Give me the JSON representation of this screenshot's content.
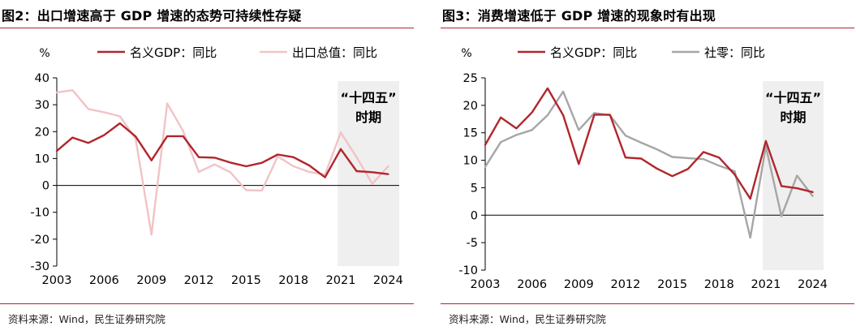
{
  "panels": [
    {
      "title": "图2：出口增速高于 GDP 增速的态势可持续性存疑",
      "source": "资料来源：Wind，民生证券研究院",
      "chart_data": {
        "type": "line",
        "unit": "%",
        "ylim": [
          -30,
          40
        ],
        "yticks": [
          40,
          30,
          20,
          10,
          0,
          -10,
          -20,
          -30
        ],
        "xlim": [
          2003,
          2024.7
        ],
        "xticks": [
          2003,
          2006,
          2009,
          2012,
          2015,
          2018,
          2021,
          2024
        ],
        "grid": false,
        "legend": "top",
        "annotation": {
          "lines": [
            "“十四五”",
            "时期"
          ],
          "shaded_from": 2020.8,
          "shaded_to": 2024.7
        },
        "series": [
          {
            "name": "名义GDP：同比",
            "color": "#b1262c",
            "x": [
              2003,
              2004,
              2005,
              2006,
              2007,
              2008,
              2009,
              2010,
              2011,
              2012,
              2013,
              2014,
              2015,
              2016,
              2017,
              2018,
              2019,
              2020,
              2021,
              2022,
              2023,
              2024
            ],
            "values": [
              12.8,
              17.8,
              15.8,
              18.7,
              23.1,
              18.2,
              9.3,
              18.3,
              18.3,
              10.5,
              10.3,
              8.5,
              7.1,
              8.4,
              11.5,
              10.5,
              7.4,
              3.0,
              13.5,
              5.3,
              4.9,
              4.2
            ]
          },
          {
            "name": "出口总值：同比",
            "color": "#f1c3c6",
            "x": [
              2003,
              2004,
              2005,
              2006,
              2007,
              2008,
              2009,
              2010,
              2011,
              2012,
              2013,
              2014,
              2015,
              2016,
              2017,
              2018,
              2019,
              2020,
              2021,
              2022,
              2023,
              2024
            ],
            "values": [
              34.6,
              35.4,
              28.4,
              27.2,
              25.7,
              17.3,
              -18.3,
              30.5,
              20.3,
              5.0,
              7.8,
              4.9,
              -1.8,
              -1.9,
              10.8,
              7.1,
              5.0,
              4.0,
              19.7,
              10.5,
              0.6,
              7.1
            ]
          }
        ]
      }
    },
    {
      "title": "图3：消费增速低于 GDP 增速的现象时有出现",
      "source": "资料来源：Wind，民生证券研究院",
      "chart_data": {
        "type": "line",
        "unit": "%",
        "ylim": [
          -10,
          25
        ],
        "yticks": [
          25,
          20,
          15,
          10,
          5,
          0,
          -5,
          -10
        ],
        "xlim": [
          2003,
          2024.7
        ],
        "xticks": [
          2003,
          2006,
          2009,
          2012,
          2015,
          2018,
          2021,
          2024
        ],
        "grid": false,
        "legend": "top",
        "annotation": {
          "lines": [
            "“十四五”",
            "时期"
          ],
          "shaded_from": 2020.8,
          "shaded_to": 2024.7
        },
        "series": [
          {
            "name": "名义GDP：同比",
            "color": "#b1262c",
            "x": [
              2003,
              2004,
              2005,
              2006,
              2007,
              2008,
              2009,
              2010,
              2011,
              2012,
              2013,
              2014,
              2015,
              2016,
              2017,
              2018,
              2019,
              2020,
              2021,
              2022,
              2023,
              2024
            ],
            "values": [
              12.8,
              17.8,
              15.8,
              18.7,
              23.1,
              18.2,
              9.3,
              18.3,
              18.3,
              10.5,
              10.3,
              8.5,
              7.1,
              8.4,
              11.5,
              10.5,
              7.4,
              3.0,
              13.5,
              5.3,
              4.9,
              4.2
            ]
          },
          {
            "name": "社零：同比",
            "color": "#a6a6a6",
            "x": [
              2003,
              2004,
              2005,
              2006,
              2007,
              2008,
              2009,
              2010,
              2011,
              2012,
              2013,
              2014,
              2015,
              2016,
              2017,
              2018,
              2019,
              2020,
              2021,
              2022,
              2023,
              2024
            ],
            "values": [
              8.8,
              13.3,
              14.6,
              15.5,
              18.2,
              22.5,
              15.5,
              18.6,
              18.2,
              14.5,
              13.2,
              12.0,
              10.6,
              10.4,
              10.2,
              9.0,
              8.0,
              -4.1,
              12.5,
              -0.2,
              7.2,
              3.5
            ]
          }
        ]
      }
    }
  ]
}
